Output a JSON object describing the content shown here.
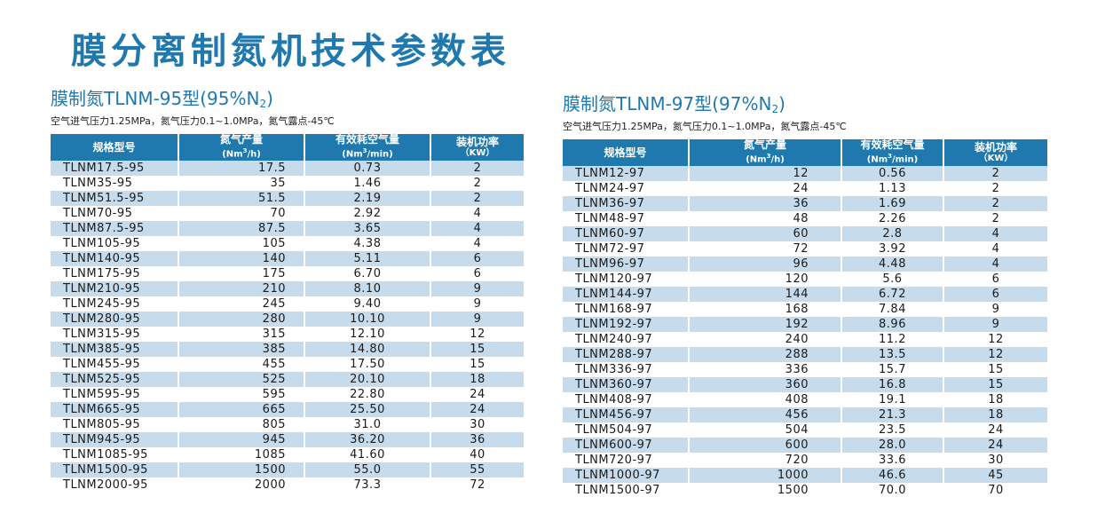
{
  "title": "膜分离制氮机技术参数表",
  "header": {
    "model": "规格型号",
    "output": "氮气产量",
    "output_unit_pre": "(Nm",
    "output_unit_sup": "3",
    "output_unit_post": "/h)",
    "air": "有效耗空气量",
    "air_unit_pre": "(Nm",
    "air_unit_sup": "3",
    "air_unit_post": "/min)",
    "power": "装机功率",
    "power_unit": "（KW）"
  },
  "table95": {
    "title_main": "膜制氮TLNM-95型(95%N",
    "title_sub": "2",
    "title_end": ")",
    "conditions": "空气进气压力1.25MPa，氮气压力0.1~1.0MPa，氮气露点-45℃",
    "rows": [
      [
        "TLNM17.5-95",
        "17.5",
        "0.73",
        "2"
      ],
      [
        "TLNM35-95",
        "35",
        "1.46",
        "2"
      ],
      [
        "TLNM51.5-95",
        "51.5",
        "2.19",
        "2"
      ],
      [
        "TLNM70-95",
        "70",
        "2.92",
        "4"
      ],
      [
        "TLNM87.5-95",
        "87.5",
        "3.65",
        "4"
      ],
      [
        "TLNM105-95",
        "105",
        "4.38",
        "4"
      ],
      [
        "TLNM140-95",
        "140",
        "5.11",
        "6"
      ],
      [
        "TLNM175-95",
        "175",
        "6.70",
        "6"
      ],
      [
        "TLNM210-95",
        "210",
        "8.10",
        "9"
      ],
      [
        "TLNM245-95",
        "245",
        "9.40",
        "9"
      ],
      [
        "TLNM280-95",
        "280",
        "10.10",
        "9"
      ],
      [
        "TLNM315-95",
        "315",
        "12.10",
        "12"
      ],
      [
        "TLNM385-95",
        "385",
        "14.80",
        "15"
      ],
      [
        "TLNM455-95",
        "455",
        "17.50",
        "15"
      ],
      [
        "TLNM525-95",
        "525",
        "20.10",
        "18"
      ],
      [
        "TLNM595-95",
        "595",
        "22.80",
        "24"
      ],
      [
        "TLNM665-95",
        "665",
        "25.50",
        "24"
      ],
      [
        "TLNM805-95",
        "805",
        "31.0",
        "30"
      ],
      [
        "TLNM945-95",
        "945",
        "36.20",
        "36"
      ],
      [
        "TLNM1085-95",
        "1085",
        "41.60",
        "40"
      ],
      [
        "TLNM1500-95",
        "1500",
        "55.0",
        "55"
      ],
      [
        "TLNM2000-95",
        "2000",
        "73.3",
        "72"
      ]
    ]
  },
  "table97": {
    "title_main": "膜制氮TLNM-97型(97%N",
    "title_sub": "2",
    "title_end": ")",
    "conditions": "空气进气压力1.25MPa，氮气压力0.1~1.0MPa，氮气露点-45℃",
    "rows": [
      [
        "TLNM12-97",
        "12",
        "0.56",
        "2"
      ],
      [
        "TLNM24-97",
        "24",
        "1.13",
        "2"
      ],
      [
        "TLNM36-97",
        "36",
        "1.69",
        "2"
      ],
      [
        "TLNM48-97",
        "48",
        "2.26",
        "2"
      ],
      [
        "TLNM60-97",
        "60",
        "2.8",
        "4"
      ],
      [
        "TLNM72-97",
        "72",
        "3.92",
        "4"
      ],
      [
        "TLNM96-97",
        "96",
        "4.48",
        "4"
      ],
      [
        "TLNM120-97",
        "120",
        "5.6",
        "6"
      ],
      [
        "TLNM144-97",
        "144",
        "6.72",
        "6"
      ],
      [
        "TLNM168-97",
        "168",
        "7.84",
        "9"
      ],
      [
        "TLNM192-97",
        "192",
        "8.96",
        "9"
      ],
      [
        "TLNM240-97",
        "240",
        "11.2",
        "12"
      ],
      [
        "TLNM288-97",
        "288",
        "13.5",
        "12"
      ],
      [
        "TLNM336-97",
        "336",
        "15.7",
        "15"
      ],
      [
        "TLNM360-97",
        "360",
        "16.8",
        "15"
      ],
      [
        "TLNM408-97",
        "408",
        "19.1",
        "18"
      ],
      [
        "TLNM456-97",
        "456",
        "21.3",
        "18"
      ],
      [
        "TLNM504-97",
        "504",
        "23.5",
        "24"
      ],
      [
        "TLNM600-97",
        "600",
        "28.0",
        "24"
      ],
      [
        "TLNM720-97",
        "720",
        "33.6",
        "30"
      ],
      [
        "TLNM1000-97",
        "1000",
        "46.6",
        "45"
      ],
      [
        "TLNM1500-97",
        "1500",
        "70.0",
        "70"
      ]
    ]
  },
  "colors": {
    "accent": "#1f79ae",
    "row_stripe": "#c6dcec",
    "background": "#ffffff"
  }
}
